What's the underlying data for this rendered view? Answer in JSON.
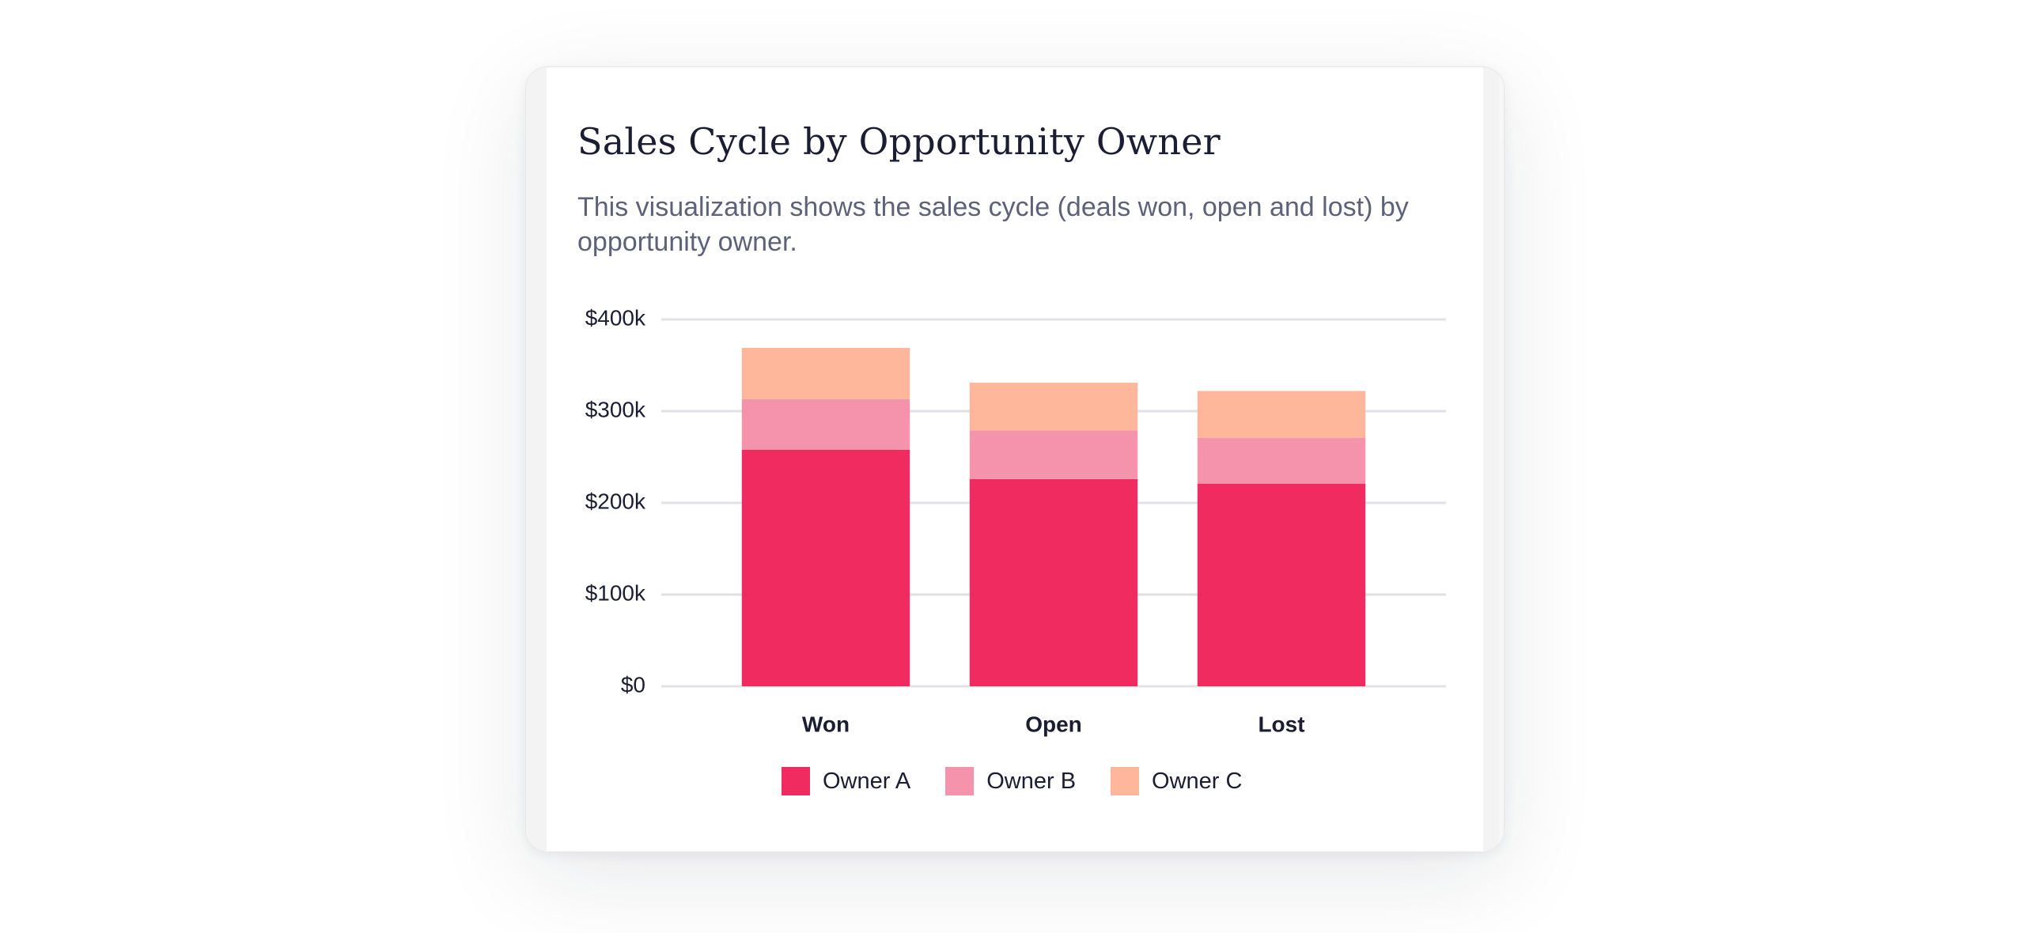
{
  "card": {
    "title": "Sales Cycle by Opportunity Owner",
    "subtitle": "This visualization shows the sales cycle (deals won, open and lost) by opportunity owner."
  },
  "chart_data": {
    "type": "bar",
    "stacked": true,
    "categories": [
      "Won",
      "Open",
      "Lost"
    ],
    "series": [
      {
        "name": "Owner A",
        "color": "#ef2b5f",
        "values": [
          258000,
          226000,
          221000
        ]
      },
      {
        "name": "Owner B",
        "color": "#f593ad",
        "values": [
          55000,
          53000,
          50000
        ]
      },
      {
        "name": "Owner C",
        "color": "#feb79a",
        "values": [
          56000,
          52000,
          51000
        ]
      }
    ],
    "ylim": [
      0,
      400000
    ],
    "yticks": [
      0,
      100000,
      200000,
      300000,
      400000
    ],
    "ytick_labels": [
      "$0",
      "$100k",
      "$200k",
      "$300k",
      "$400k"
    ],
    "grid": true,
    "legend": "bottom-center"
  }
}
